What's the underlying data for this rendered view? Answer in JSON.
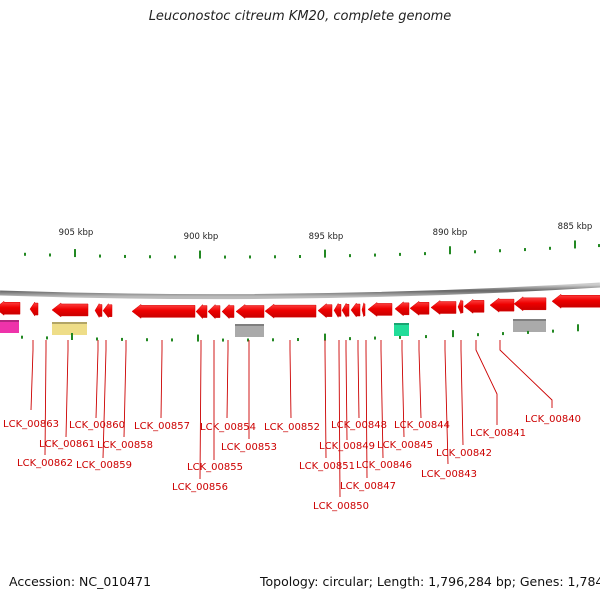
{
  "title": "Leuconostoc citreum KM20, complete genome",
  "footer": {
    "accession": "Accession: NC_010471",
    "summary": "Topology: circular; Length: 1,796,284 bp; Genes: 1,784"
  },
  "scale_labels": [
    "905 kbp",
    "900 kbp",
    "895 kbp",
    "890 kbp",
    "885 kbp"
  ],
  "gene_labels": [
    "LCK_00863",
    "LCK_00862",
    "LCK_00861",
    "LCK_00860",
    "LCK_00859",
    "LCK_00858",
    "LCK_00857",
    "LCK_00856",
    "LCK_00855",
    "LCK_00854",
    "LCK_00853",
    "LCK_00852",
    "LCK_00851",
    "LCK_00850",
    "LCK_00849",
    "LCK_00848",
    "LCK_00847",
    "LCK_00846",
    "LCK_00845",
    "LCK_00844",
    "LCK_00843",
    "LCK_00842",
    "LCK_00841",
    "LCK_00840"
  ],
  "colors": {
    "gene": "#ee0000",
    "label": "#cc0000",
    "backbone": "#888888",
    "tick": "#228822",
    "feature_magenta": "#ee33aa",
    "feature_yellow": "#eedd88",
    "feature_gray": "#aaaaaa",
    "feature_green": "#22dd99"
  }
}
